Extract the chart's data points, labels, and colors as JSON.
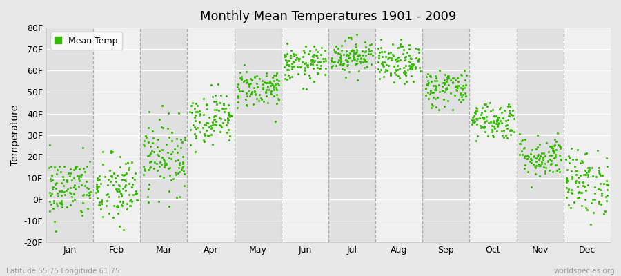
{
  "title": "Monthly Mean Temperatures 1901 - 2009",
  "ylabel": "Temperature",
  "xlabel_bottom_left": "Latitude 55.75 Longitude 61.75",
  "xlabel_bottom_right": "worldspecies.org",
  "legend_label": "Mean Temp",
  "dot_color": "#33bb00",
  "fig_bg_color": "#e8e8e8",
  "plot_bg_color": "#f0f0f0",
  "band_color_dark": "#e0e0e0",
  "band_color_light": "#f0f0f0",
  "ylim": [
    -20,
    80
  ],
  "yticks": [
    -20,
    -10,
    0,
    10,
    20,
    30,
    40,
    50,
    60,
    70,
    80
  ],
  "ytick_labels": [
    "-20F",
    "-10F",
    "0F",
    "10F",
    "20F",
    "30F",
    "40F",
    "50F",
    "60F",
    "70F",
    "80F"
  ],
  "months": [
    "Jan",
    "Feb",
    "Mar",
    "Apr",
    "May",
    "Jun",
    "Jul",
    "Aug",
    "Sep",
    "Oct",
    "Nov",
    "Dec"
  ],
  "num_years": 109,
  "seed": 42,
  "monthly_mean_F": [
    5.0,
    4.0,
    20.0,
    38.0,
    52.0,
    63.0,
    67.0,
    63.0,
    52.0,
    37.0,
    20.0,
    8.0
  ],
  "monthly_std_F": [
    7.5,
    8.5,
    8.5,
    6.0,
    4.5,
    4.0,
    4.0,
    4.5,
    4.5,
    4.5,
    5.0,
    7.5
  ]
}
